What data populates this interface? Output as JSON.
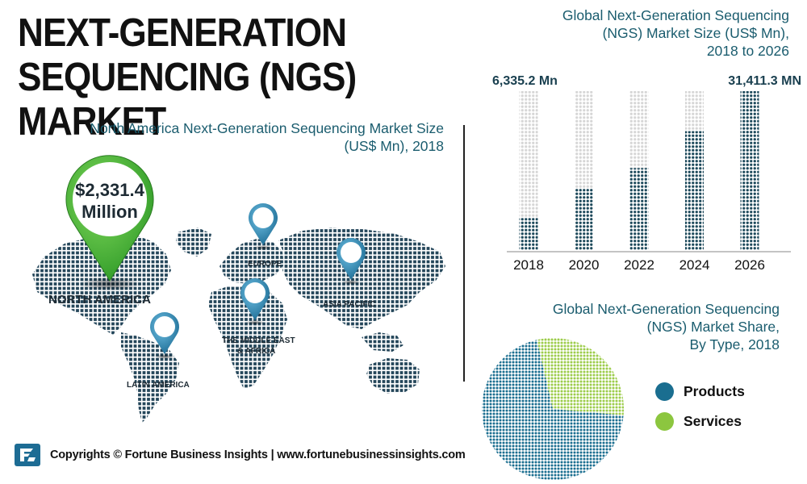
{
  "header": {
    "title_line1": "NEXT-GENERATION",
    "title_line2": "SEQUENCING (NGS) MARKET"
  },
  "north_america": {
    "title_line1": "North America Next-Generation Sequencing Market Size",
    "title_line2": "(US$ Mn), 2018",
    "pin_value": "$2,331.4",
    "pin_unit": "Million"
  },
  "regions": {
    "north_america": "NORTH AMERICA",
    "europe": "EUROPE",
    "asia_pacific": "ASIA PACIFIC",
    "middle_east_line1": "THE MIDDLE EAST",
    "middle_east_line2": "& AFRICA",
    "latin_america": "LATIN AMERICA"
  },
  "colors": {
    "teal": "#1a5c6e",
    "dark": "#1d3d4c",
    "light": "#e2e2e2",
    "product": "#1a6e90",
    "service": "#8cc63f",
    "pin_green": "#48b83a",
    "pin_blue": "#2b7ea6"
  },
  "chart_data": [
    {
      "type": "bar",
      "title": "Global Next-Generation Sequencing (NGS) Market Size (US$ Mn), 2018 to 2026",
      "title_lines": [
        "Global Next-Generation Sequencing",
        "(NGS) Market Size (US$ Mn),",
        "2018 to 2026"
      ],
      "categories": [
        "2018",
        "2020",
        "2022",
        "2024",
        "2026"
      ],
      "values": [
        6335.2,
        12200,
        16200,
        23500,
        31411.3
      ],
      "ylim": [
        0,
        31411.3
      ],
      "data_labels": {
        "first": "6,335.2 Mn",
        "last": "31,411.3 MN"
      },
      "xlabel": "",
      "ylabel": ""
    },
    {
      "type": "pie",
      "title": "Global Next-Generation Sequencing (NGS) Market Share, By Type, 2018",
      "title_lines": [
        "Global Next-Generation Sequencing",
        "(NGS) Market Share,",
        "By Type, 2018"
      ],
      "categories": [
        "Products",
        "Services"
      ],
      "values": [
        70,
        30
      ],
      "legend": "right"
    }
  ],
  "footer": {
    "text": "Copyrights © Fortune Business Insights | www.fortunebusinessinsights.com"
  }
}
